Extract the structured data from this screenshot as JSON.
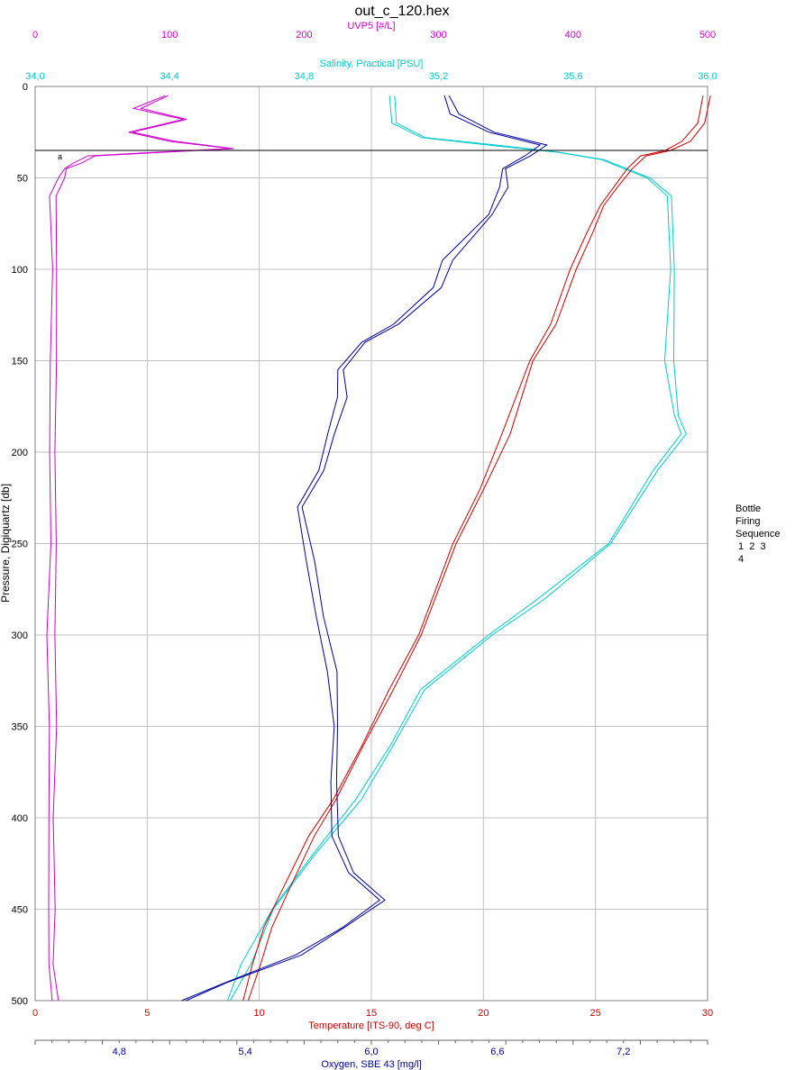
{
  "chart_data": {
    "type": "line",
    "title": "out_c_120.hex",
    "y_axis": {
      "label": "Pressure, Digiquartz [db]",
      "range": [
        0,
        500
      ],
      "reversed": true,
      "ticks": [
        "0",
        "50",
        "100",
        "150",
        "200",
        "250",
        "300",
        "350",
        "400",
        "450",
        "500"
      ],
      "tick_values": [
        0,
        50,
        100,
        150,
        200,
        250,
        300,
        350,
        400,
        450,
        500
      ]
    },
    "x_axes": [
      {
        "id": "uvp5",
        "label": "UVP5 [#/L]",
        "position": "top",
        "color": "#cc00cc",
        "range": [
          0,
          500
        ],
        "ticks": [
          "0",
          "100",
          "200",
          "300",
          "400",
          "500"
        ],
        "tick_values": [
          0,
          100,
          200,
          300,
          400,
          500
        ]
      },
      {
        "id": "salinity",
        "label": "Salinity, Practical [PSU]",
        "position": "top",
        "color": "#00cccc",
        "range": [
          34.0,
          36.0
        ],
        "ticks": [
          "34,0",
          "34,4",
          "34,8",
          "35,2",
          "35,6",
          "36,0"
        ],
        "tick_values": [
          34.0,
          34.4,
          34.8,
          35.2,
          35.6,
          36.0
        ]
      },
      {
        "id": "temperature",
        "label": "Temperature [ITS-90, deg C]",
        "position": "bottom",
        "color": "#cc0000",
        "range": [
          0,
          30
        ],
        "ticks": [
          "0",
          "5",
          "10",
          "15",
          "20",
          "25",
          "30"
        ],
        "tick_values": [
          0,
          5,
          10,
          15,
          20,
          25,
          30
        ]
      },
      {
        "id": "oxygen",
        "label": "Oxygen, SBE 43 [mg/l]",
        "position": "bottom",
        "color": "#000099",
        "range": [
          4.4,
          7.6
        ],
        "ticks": [
          "4,8",
          "5,4",
          "6,0",
          "6,6",
          "7,2"
        ],
        "tick_values": [
          4.8,
          5.4,
          6.0,
          6.6,
          7.2
        ]
      }
    ],
    "grid": true,
    "legend": {
      "placement": "right",
      "lines": [
        "Bottle",
        "Firing",
        "Sequence",
        " 1  2  3",
        " 4"
      ]
    },
    "bottle_marker_pressure": 35,
    "annotation": "a",
    "series": [
      {
        "axis": "uvp5",
        "color": "#cc00cc",
        "points": [
          [
            95,
            5
          ],
          [
            75,
            12
          ],
          [
            110,
            18
          ],
          [
            70,
            25
          ],
          [
            100,
            30
          ],
          [
            145,
            34
          ],
          [
            90,
            36
          ],
          [
            40,
            38
          ],
          [
            28,
            42
          ],
          [
            20,
            45
          ],
          [
            16,
            50
          ],
          [
            12,
            60
          ],
          [
            11,
            100
          ],
          [
            10,
            150
          ],
          [
            11,
            200
          ],
          [
            10,
            250
          ],
          [
            9,
            300
          ],
          [
            10,
            350
          ],
          [
            11,
            400
          ],
          [
            9,
            450
          ],
          [
            10,
            480
          ],
          [
            12,
            500
          ]
        ]
      },
      {
        "axis": "salinity",
        "color": "#00cccc",
        "points": [
          [
            35.05,
            5
          ],
          [
            35.06,
            20
          ],
          [
            35.15,
            28
          ],
          [
            35.35,
            32
          ],
          [
            35.55,
            36
          ],
          [
            35.68,
            40
          ],
          [
            35.82,
            50
          ],
          [
            35.88,
            60
          ],
          [
            35.89,
            100
          ],
          [
            35.88,
            150
          ],
          [
            35.9,
            180
          ],
          [
            35.92,
            190
          ],
          [
            35.84,
            210
          ],
          [
            35.7,
            250
          ],
          [
            35.5,
            280
          ],
          [
            35.35,
            300
          ],
          [
            35.15,
            330
          ],
          [
            35.05,
            360
          ],
          [
            34.95,
            390
          ],
          [
            34.82,
            420
          ],
          [
            34.7,
            450
          ],
          [
            34.62,
            480
          ],
          [
            34.57,
            500
          ]
        ]
      },
      {
        "axis": "temperature",
        "color": "#cc0000",
        "points": [
          [
            29.9,
            5
          ],
          [
            29.6,
            20
          ],
          [
            28.9,
            30
          ],
          [
            28,
            35
          ],
          [
            27,
            38
          ],
          [
            26.4,
            45
          ],
          [
            25.8,
            55
          ],
          [
            25.2,
            65
          ],
          [
            24.6,
            80
          ],
          [
            23.9,
            100
          ],
          [
            22.9,
            130
          ],
          [
            22,
            150
          ],
          [
            20.9,
            190
          ],
          [
            19.8,
            220
          ],
          [
            18.6,
            250
          ],
          [
            17,
            300
          ],
          [
            15.8,
            330
          ],
          [
            14.5,
            360
          ],
          [
            13.3,
            390
          ],
          [
            12.2,
            410
          ],
          [
            11,
            440
          ],
          [
            10.3,
            460
          ],
          [
            9.8,
            480
          ],
          [
            9.3,
            500
          ]
        ]
      },
      {
        "axis": "oxygen",
        "color": "#000099",
        "points": [
          [
            6.35,
            5
          ],
          [
            6.38,
            15
          ],
          [
            6.55,
            25
          ],
          [
            6.8,
            32
          ],
          [
            6.72,
            38
          ],
          [
            6.62,
            45
          ],
          [
            6.62,
            55
          ],
          [
            6.55,
            70
          ],
          [
            6.35,
            95
          ],
          [
            6.3,
            110
          ],
          [
            6.1,
            130
          ],
          [
            5.95,
            140
          ],
          [
            5.85,
            155
          ],
          [
            5.85,
            170
          ],
          [
            5.8,
            190
          ],
          [
            5.75,
            210
          ],
          [
            5.65,
            230
          ],
          [
            5.7,
            260
          ],
          [
            5.75,
            290
          ],
          [
            5.8,
            320
          ],
          [
            5.82,
            350
          ],
          [
            5.8,
            380
          ],
          [
            5.82,
            410
          ],
          [
            5.9,
            430
          ],
          [
            6.05,
            445
          ],
          [
            5.85,
            460
          ],
          [
            5.65,
            475
          ],
          [
            5.3,
            490
          ],
          [
            5.1,
            500
          ]
        ]
      }
    ]
  }
}
